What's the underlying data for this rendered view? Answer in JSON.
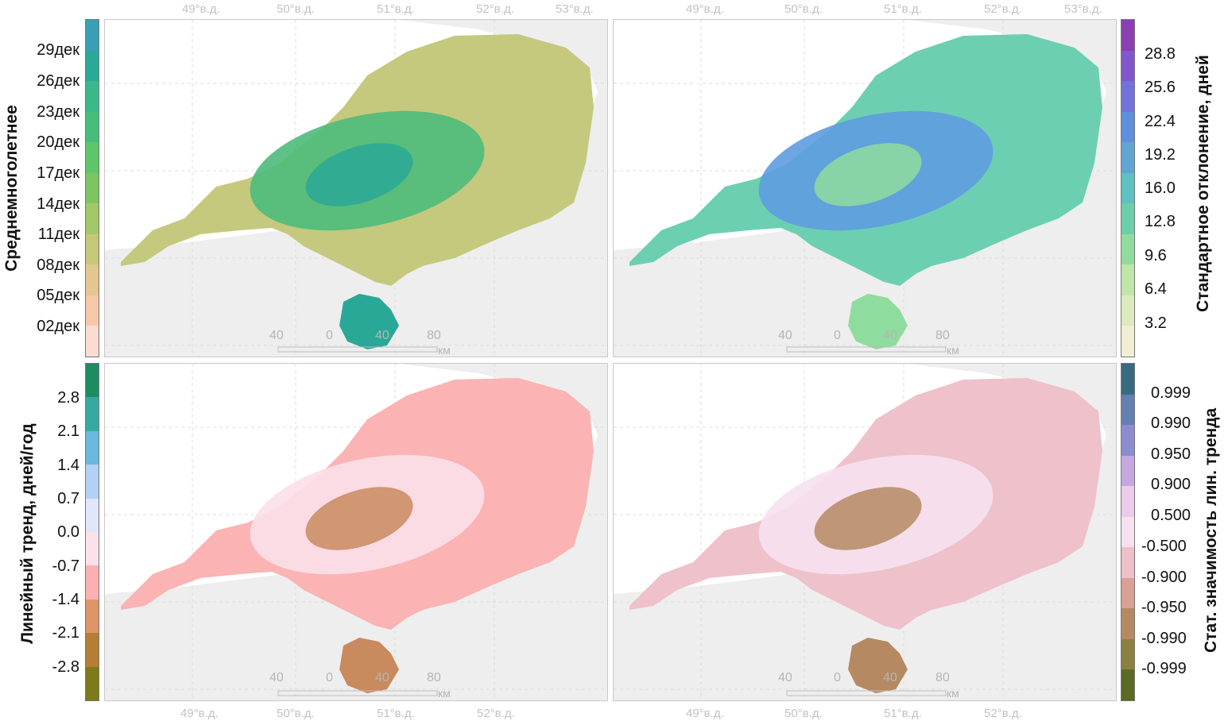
{
  "coords_top": [
    "49°в.д.",
    "50°в.д.",
    "51°в.д.",
    "52°в.д.",
    "53°в.д."
  ],
  "coords_bottom": [
    "49°в.д.",
    "50°в.д.",
    "51°в.д.",
    "52°в.д."
  ],
  "scale": {
    "labels": [
      "40",
      "0",
      "40",
      "80"
    ],
    "unit": "км"
  },
  "panels": [
    {
      "id": "mean",
      "title": "Среднемноголетнее",
      "ticks": [
        "29дек",
        "26дек",
        "23дек",
        "20дек",
        "17дек",
        "14дек",
        "11дек",
        "08дек",
        "05дек",
        "02дек"
      ],
      "colors": [
        "#3a9fb5",
        "#2aaa96",
        "#3bb88a",
        "#47bd7b",
        "#5fc56b",
        "#7ec463",
        "#a3c769",
        "#c6c879",
        "#e4c690",
        "#f5c8a8",
        "#fadcd0"
      ],
      "land": "#c5c97e",
      "center": "#4dbb7b",
      "core": "#2aa897"
    },
    {
      "id": "std",
      "title": "Стандартное отклонение, дней",
      "ticks": [
        "28.8",
        "25.6",
        "22.4",
        "19.2",
        "16.0",
        "12.8",
        "9.6",
        "6.4",
        "3.2"
      ],
      "colors": [
        "#8b3fb2",
        "#8357cc",
        "#7272d8",
        "#5f8fdb",
        "#5fa6d2",
        "#5ec0c0",
        "#6ccfac",
        "#92dba0",
        "#bfe6a8",
        "#dde9bf",
        "#f0efd6"
      ],
      "land": "#6dcfb1",
      "center": "#5e9ce0",
      "core": "#8fdc9f"
    },
    {
      "id": "trend",
      "title": "Линейный тренд, дней/год",
      "ticks": [
        "2.8",
        "2.1",
        "1.4",
        "0.7",
        "0.0",
        "-0.7",
        "-1.4",
        "-2.1",
        "-2.8"
      ],
      "colors": [
        "#1e8c63",
        "#36aaa1",
        "#6ab8dc",
        "#b3d0f5",
        "#e1e6fb",
        "#fbe2ea",
        "#fbb1b1",
        "#e0946b",
        "#b57d35",
        "#7d7a19"
      ],
      "land": "#fbb3b3",
      "center": "#fbdfe9",
      "core": "#c98a5e"
    },
    {
      "id": "signif",
      "title": "Стат. значимость лин. тренда",
      "ticks": [
        "0.999",
        "0.990",
        "0.950",
        "0.900",
        "0.500",
        "-0.500",
        "-0.900",
        "-0.950",
        "-0.990",
        "-0.999"
      ],
      "colors": [
        "#386a80",
        "#6380b0",
        "#8c8cd0",
        "#c5a8e0",
        "#eccbea",
        "#f7e1ef",
        "#eec0c9",
        "#d9a195",
        "#b58a63",
        "#8c8040",
        "#5b6b24"
      ],
      "land": "#efc1cb",
      "center": "#f7e1ef",
      "core": "#b58a63"
    }
  ]
}
